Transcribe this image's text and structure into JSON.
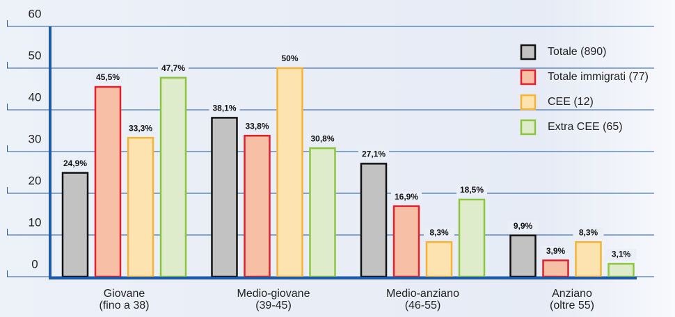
{
  "chart_data": {
    "type": "bar",
    "categories": [
      "Giovane\n(fino a 38)",
      "Medio-giovane\n(39-45)",
      "Medio-anziano\n(46-55)",
      "Anziano\n(oltre 55)"
    ],
    "series": [
      {
        "name": "Totale (890)",
        "color": "#111111",
        "fill": "#c2c2c2",
        "values": [
          24.9,
          38.1,
          27.1,
          9.9
        ],
        "value_labels": [
          "24,9%",
          "38,1%",
          "27,1%",
          "9,9%"
        ]
      },
      {
        "name": "Totale immigrati (77)",
        "color": "#e0202a",
        "fill": "#f7bfa6",
        "values": [
          45.5,
          33.8,
          16.9,
          3.9
        ],
        "value_labels": [
          "45,5%",
          "33,8%",
          "16,9%",
          "3,9%"
        ]
      },
      {
        "name": "CEE (12)",
        "color": "#f5b335",
        "fill": "#fde3b0",
        "values": [
          33.3,
          50,
          8.3,
          8.3
        ],
        "value_labels": [
          "33,3%",
          "50%",
          "8,3%",
          "8,3%"
        ]
      },
      {
        "name": "Extra CEE (65)",
        "color": "#8cc63f",
        "fill": "#dfeccc",
        "values": [
          47.7,
          30.8,
          18.5,
          3.1
        ],
        "value_labels": [
          "47,7%",
          "30,8%",
          "18,5%",
          "3,1%"
        ]
      }
    ],
    "ylim": [
      0,
      60
    ],
    "yticks": [
      0,
      10,
      20,
      30,
      40,
      50,
      60
    ],
    "grid": true,
    "legend": "upper right"
  }
}
